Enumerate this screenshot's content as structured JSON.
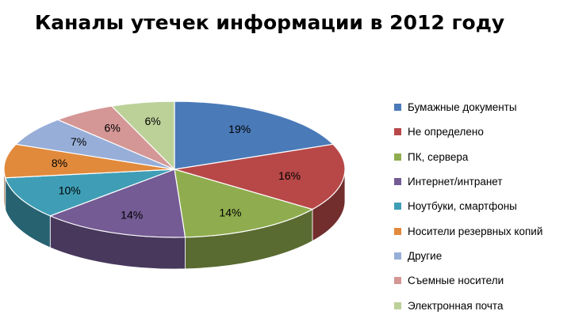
{
  "chart_data": {
    "type": "pie",
    "title": "Каналы утечек информации в 2012 году",
    "legend_position": "right",
    "three_d": true,
    "slices": [
      {
        "label": "Бумажные документы",
        "value": 19,
        "value_label": "19%",
        "color": "#4a7ab8"
      },
      {
        "label": "Не определено",
        "value": 16,
        "value_label": "16%",
        "color": "#b84848"
      },
      {
        "label": "ПК, сервера",
        "value": 14,
        "value_label": "14%",
        "color": "#8fad4e"
      },
      {
        "label": "Интернет/интранет",
        "value": 14,
        "value_label": "14%",
        "color": "#745b94"
      },
      {
        "label": "Ноутбуки, смартфоны",
        "value": 10,
        "value_label": "10%",
        "color": "#3f9eb6"
      },
      {
        "label": "Носители резервных  копий",
        "value": 8,
        "value_label": "8%",
        "color": "#e18a3c"
      },
      {
        "label": "Другие",
        "value": 7,
        "value_label": "7%",
        "color": "#97aed8"
      },
      {
        "label": "Съемные носители",
        "value": 6,
        "value_label": "6%",
        "color": "#d49795"
      },
      {
        "label": "Электронная почта",
        "value": 6,
        "value_label": "6%",
        "color": "#bcd198"
      }
    ]
  }
}
